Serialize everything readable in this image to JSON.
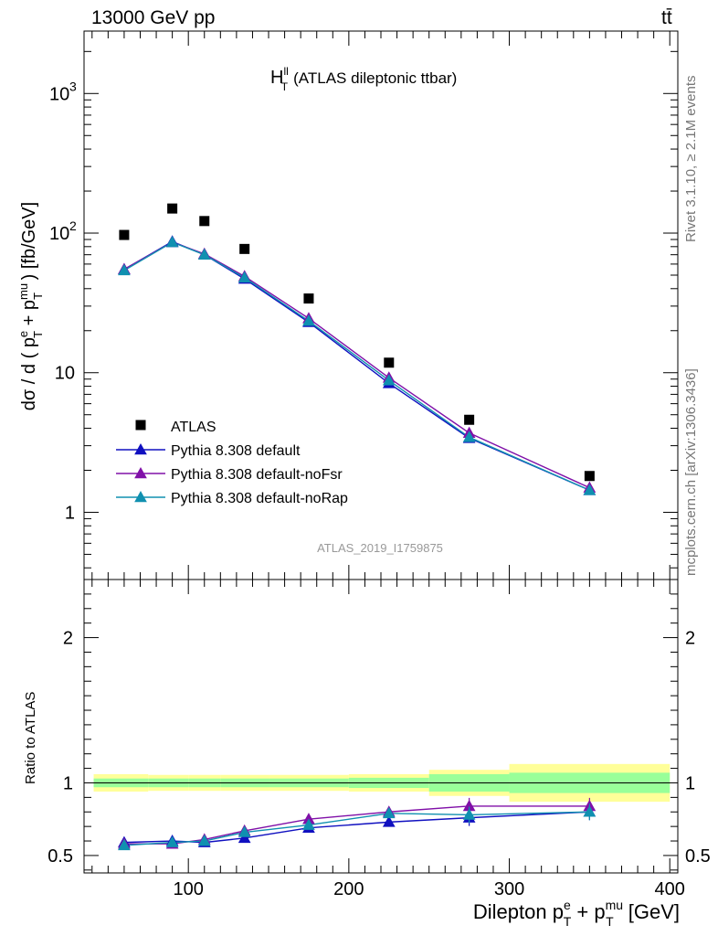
{
  "header": {
    "energy_label": "13000 GeV pp",
    "process_label": "tt̄"
  },
  "side_labels": {
    "rivet": "Rivet 3.1.10, ≥ 2.1M events",
    "mcplots": "mcplots.cern.ch [arXiv:1306.3436]"
  },
  "chart_data": [
    {
      "type": "scatter",
      "title_main": "H",
      "title_sup": "ll",
      "title_sub": "T",
      "title_rest": "(ATLAS dileptonic ttbar)",
      "analysis_id": "ATLAS_2019_I1759875",
      "ylabel": "dσ / d ( p_T^e + p_T^mu ) [fb/GeV]",
      "y_scale": "log",
      "ylim": [
        0.33,
        2800
      ],
      "xlim": [
        35,
        405
      ],
      "y_ticks": [
        {
          "value": 1,
          "label": "1"
        },
        {
          "value": 10,
          "label": "10"
        },
        {
          "value": 100,
          "label": "10²"
        },
        {
          "value": 1000,
          "label": "10³"
        }
      ],
      "legend_placement": "bottom-left",
      "series": [
        {
          "name": "ATLAS",
          "color": "#000000",
          "marker": "square",
          "x": [
            60,
            90,
            110,
            135,
            175,
            225,
            275,
            350
          ],
          "y": [
            97,
            150,
            122,
            77,
            34,
            11.8,
            4.6,
            1.82
          ]
        },
        {
          "name": "Pythia 8.308 default",
          "color": "#1010c0",
          "marker": "triangle",
          "x": [
            60,
            90,
            110,
            135,
            175,
            225,
            275,
            350
          ],
          "y": [
            55,
            87,
            70,
            47,
            23,
            8.4,
            3.4,
            1.44
          ]
        },
        {
          "name": "Pythia 8.308 default-noFsr",
          "color": "#8010a8",
          "marker": "triangle",
          "x": [
            60,
            90,
            110,
            135,
            175,
            225,
            275,
            350
          ],
          "y": [
            55,
            86,
            71,
            49,
            24.5,
            9.2,
            3.7,
            1.5
          ]
        },
        {
          "name": "Pythia 8.308 default-noRap",
          "color": "#1090b0",
          "marker": "triangle",
          "x": [
            60,
            90,
            110,
            135,
            175,
            225,
            275,
            350
          ],
          "y": [
            54,
            86,
            70,
            48,
            23.5,
            8.8,
            3.45,
            1.44
          ]
        }
      ]
    },
    {
      "type": "scatter",
      "ylabel": "Ratio to ATLAS",
      "xlabel": "Dilepton p_T^e + p_T^mu [GeV]",
      "xlim": [
        35,
        405
      ],
      "ylim": [
        0.38,
        2.4
      ],
      "x_ticks": [
        {
          "value": 100,
          "label": "100"
        },
        {
          "value": 200,
          "label": "200"
        },
        {
          "value": 300,
          "label": "300"
        },
        {
          "value": 400,
          "label": "400"
        }
      ],
      "y_ticks": [
        {
          "value": 0.5,
          "label": "0.5"
        },
        {
          "value": 1,
          "label": "1"
        },
        {
          "value": 2,
          "label": "2"
        }
      ],
      "uncertainty_bands": [
        {
          "x0": 41,
          "x1": 75,
          "inner": [
            0.97,
            1.03
          ],
          "outer": [
            0.94,
            1.06
          ]
        },
        {
          "x0": 75,
          "x1": 100,
          "inner": [
            0.97,
            1.03
          ],
          "outer": [
            0.945,
            1.055
          ]
        },
        {
          "x0": 100,
          "x1": 120,
          "inner": [
            0.97,
            1.03
          ],
          "outer": [
            0.945,
            1.055
          ]
        },
        {
          "x0": 120,
          "x1": 150,
          "inner": [
            0.97,
            1.03
          ],
          "outer": [
            0.945,
            1.055
          ]
        },
        {
          "x0": 150,
          "x1": 200,
          "inner": [
            0.97,
            1.03
          ],
          "outer": [
            0.945,
            1.055
          ]
        },
        {
          "x0": 200,
          "x1": 250,
          "inner": [
            0.965,
            1.035
          ],
          "outer": [
            0.94,
            1.06
          ]
        },
        {
          "x0": 250,
          "x1": 300,
          "inner": [
            0.94,
            1.06
          ],
          "outer": [
            0.91,
            1.09
          ]
        },
        {
          "x0": 300,
          "x1": 400,
          "inner": [
            0.93,
            1.07
          ],
          "outer": [
            0.87,
            1.13
          ]
        }
      ],
      "series": [
        {
          "name": "Pythia 8.308 default",
          "color": "#1010c0",
          "x": [
            60,
            90,
            110,
            135,
            175,
            225,
            275,
            350
          ],
          "y": [
            0.59,
            0.6,
            0.59,
            0.62,
            0.69,
            0.73,
            0.76,
            0.8
          ]
        },
        {
          "name": "Pythia 8.308 default-noFsr",
          "color": "#8010a8",
          "x": [
            60,
            90,
            110,
            135,
            175,
            225,
            275,
            350
          ],
          "y": [
            0.58,
            0.58,
            0.61,
            0.67,
            0.75,
            0.8,
            0.84,
            0.84
          ]
        },
        {
          "name": "Pythia 8.308 default-noRap",
          "color": "#1090b0",
          "x": [
            60,
            90,
            110,
            135,
            175,
            225,
            275,
            350
          ],
          "y": [
            0.57,
            0.59,
            0.6,
            0.66,
            0.71,
            0.79,
            0.78,
            0.8
          ]
        }
      ]
    }
  ]
}
